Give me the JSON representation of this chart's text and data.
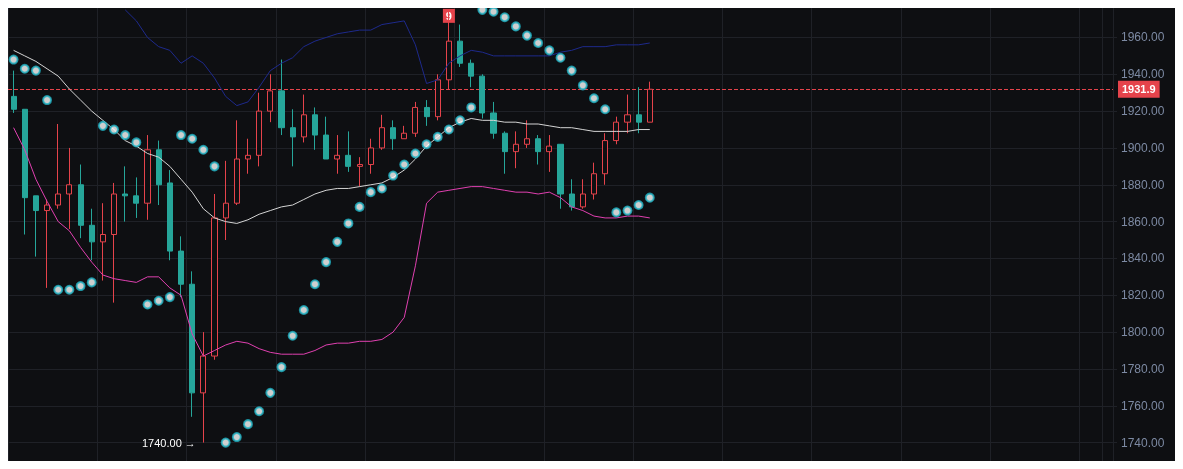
{
  "chart_data": {
    "type": "candlestick",
    "categories": [
      null,
      null,
      null,
      null,
      null,
      null,
      null,
      null,
      null,
      null,
      null,
      null,
      null,
      null,
      null,
      null,
      null,
      null,
      null,
      null,
      null,
      null,
      null,
      null,
      null,
      null,
      null,
      null,
      null,
      null,
      null,
      null,
      null,
      null,
      null,
      null,
      null,
      null,
      null,
      null,
      null,
      null,
      null,
      null,
      null,
      null,
      null,
      null,
      null,
      null,
      null,
      null,
      null,
      null,
      null,
      null,
      null,
      null,
      null,
      null,
      null,
      null,
      null,
      null,
      null,
      null,
      null,
      null,
      null,
      null,
      null,
      null,
      null,
      null,
      null,
      null,
      null,
      null,
      null,
      null,
      null,
      null,
      null,
      null,
      null,
      null,
      null,
      null,
      null,
      null,
      null,
      null,
      null,
      null,
      null,
      null,
      null,
      null,
      null
    ],
    "ohlc": [
      [
        1928,
        1942,
        1919,
        1921
      ],
      [
        1921,
        1921,
        1853,
        1873
      ],
      [
        1874,
        1874,
        1841,
        1866
      ],
      [
        1866,
        1872,
        1824,
        1869
      ],
      [
        1869,
        1913,
        1867,
        1875
      ],
      [
        1875,
        1900,
        1856,
        1880
      ],
      [
        1880,
        1891,
        1851,
        1858
      ],
      [
        1858,
        1867,
        1839,
        1849
      ],
      [
        1849,
        1870,
        1828,
        1853
      ],
      [
        1853,
        1881,
        1816,
        1875
      ],
      [
        1875,
        1890,
        1860,
        1874
      ],
      [
        1874,
        1884,
        1862,
        1870
      ],
      [
        1870,
        1907,
        1861,
        1899
      ],
      [
        1899,
        1904,
        1869,
        1880
      ],
      [
        1881,
        1888,
        1839,
        1844
      ],
      [
        1844,
        1852,
        1819,
        1826
      ],
      [
        1826,
        1833,
        1754,
        1767
      ],
      [
        1767,
        1800,
        1740,
        1787
      ],
      [
        1787,
        1875,
        1785,
        1862
      ],
      [
        1862,
        1893,
        1850,
        1870
      ],
      [
        1870,
        1915,
        1869,
        1894
      ],
      [
        1894,
        1905,
        1886,
        1896
      ],
      [
        1896,
        1930,
        1890,
        1920
      ],
      [
        1920,
        1940,
        1914,
        1931
      ],
      [
        1931,
        1948,
        1907,
        1911
      ],
      [
        1911,
        1921,
        1890,
        1906
      ],
      [
        1906,
        1929,
        1903,
        1918
      ],
      [
        1918,
        1922,
        1899,
        1907
      ],
      [
        1907,
        1917,
        1894,
        1894
      ],
      [
        1894,
        1907,
        1886,
        1896
      ],
      [
        1896,
        1909,
        1887,
        1890
      ],
      [
        1890,
        1895,
        1879,
        1891
      ],
      [
        1891,
        1905,
        1886,
        1900
      ],
      [
        1900,
        1918,
        1899,
        1911
      ],
      [
        1911,
        1915,
        1899,
        1905
      ],
      [
        1905,
        1912,
        1905,
        1908
      ],
      [
        1908,
        1925,
        1906,
        1922
      ],
      [
        1922,
        1926,
        1912,
        1917
      ],
      [
        1917,
        1940,
        1915,
        1937
      ],
      [
        1937,
        1975,
        1932,
        1958
      ],
      [
        1958,
        1967,
        1944,
        1946
      ],
      [
        1946,
        1948,
        1933,
        1939
      ],
      [
        1939,
        1940,
        1916,
        1919
      ],
      [
        1919,
        1925,
        1905,
        1908
      ],
      [
        1908,
        1909,
        1886,
        1898
      ],
      [
        1898,
        1909,
        1889,
        1902
      ],
      [
        1902,
        1915,
        1900,
        1905
      ],
      [
        1905,
        1907,
        1891,
        1898
      ],
      [
        1898,
        1907,
        1887,
        1901
      ],
      [
        1902,
        1902,
        1867,
        1875
      ],
      [
        1875,
        1883,
        1866,
        1868
      ],
      [
        1868,
        1883,
        1867,
        1875
      ],
      [
        1875,
        1892,
        1872,
        1886
      ],
      [
        1886,
        1908,
        1880,
        1904
      ],
      [
        1904,
        1917,
        1902,
        1914
      ],
      [
        1914,
        1929,
        1908,
        1918
      ],
      [
        1918,
        1933,
        1908,
        1914
      ],
      [
        1914,
        1936,
        1914,
        1931.9
      ],
      null,
      null,
      null,
      null,
      null,
      null,
      null,
      null,
      null,
      null,
      null,
      null,
      null,
      null,
      null,
      null,
      null,
      null,
      null,
      null,
      null,
      null,
      null,
      null,
      null,
      null,
      null,
      null,
      null,
      null,
      null,
      null,
      null,
      null,
      null,
      null,
      null,
      null,
      null,
      null,
      null
    ],
    "colors": [
      "#26a69a",
      "#26a69a",
      "#26a69a",
      "#e5434b",
      "#e5434b",
      "#e5434b",
      "#26a69a",
      "#26a69a",
      "#e5434b",
      "#e5434b",
      "#26a69a",
      "#26a69a",
      "#e5434b",
      "#26a69a",
      "#26a69a",
      "#26a69a",
      "#26a69a",
      "#e5434b",
      "#e5434b",
      "#e5434b",
      "#e5434b",
      "#e5434b",
      "#e5434b",
      "#e5434b",
      "#26a69a",
      "#26a69a",
      "#e5434b",
      "#26a69a",
      "#26a69a",
      "#e5434b",
      "#26a69a",
      "#e5434b",
      "#e5434b",
      "#e5434b",
      "#26a69a",
      "#e5434b",
      "#e5434b",
      "#26a69a",
      "#e5434b",
      "#e5434b",
      "#26a69a",
      "#26a69a",
      "#26a69a",
      "#26a69a",
      "#26a69a",
      "#e5434b",
      "#e5434b",
      "#26a69a",
      "#e5434b",
      "#26a69a",
      "#26a69a",
      "#e5434b",
      "#e5434b",
      "#e5434b",
      "#e5434b",
      "#e5434b",
      "#26a69a",
      "#e5434b",
      null,
      null,
      null,
      null,
      null,
      null,
      null,
      null,
      null,
      null,
      null,
      null,
      null,
      null,
      null,
      null,
      null,
      null,
      null,
      null,
      null,
      null,
      null,
      null,
      null,
      null,
      null,
      null,
      null,
      null,
      null,
      null,
      null,
      null,
      null,
      null,
      null,
      null,
      null,
      null,
      null
    ],
    "series": [
      {
        "type": "line",
        "color": "#1e2a8c",
        "values": [
          null,
          null,
          null,
          null,
          null,
          null,
          null,
          null,
          null,
          null,
          1975,
          1969,
          1960,
          1955,
          1953,
          1946,
          1950,
          1946,
          1938,
          1928,
          1923,
          1925,
          1933,
          1942,
          1946,
          1949,
          1955,
          1958,
          1960,
          1962,
          1963,
          1964,
          1964,
          1967,
          1968,
          1969,
          1956,
          1935,
          1937,
          1946,
          1950,
          1953,
          1952,
          1950,
          1950,
          1950,
          1950,
          1950,
          1950,
          1952,
          1953,
          1955,
          1955,
          1955,
          1956,
          1956,
          1956,
          1957,
          null,
          null,
          null,
          null,
          null,
          null,
          null,
          null,
          null,
          null,
          null,
          null,
          null,
          null,
          null,
          null,
          null,
          null,
          null,
          null,
          null,
          null,
          null,
          null,
          null,
          null,
          null,
          null,
          null,
          null,
          null,
          null,
          null,
          null,
          null,
          null,
          null,
          null,
          null,
          null,
          null
        ]
      },
      {
        "type": "line",
        "color": "#d4d4d4",
        "values": [
          1953,
          1950,
          1947,
          1943,
          1939,
          1932,
          1926,
          1920,
          1915,
          1910,
          1904,
          1901,
          1897,
          1895,
          1890,
          1883,
          1876,
          1867,
          1862,
          1860,
          1859,
          1861,
          1864,
          1866,
          1868,
          1869,
          1872,
          1875,
          1877,
          1878,
          1878,
          1879,
          1880,
          1881,
          1884,
          1888,
          1894,
          1901,
          1906,
          1911,
          1914,
          1916,
          1915,
          1915,
          1914,
          1914,
          1913,
          1913,
          1912,
          1911,
          1911,
          1910,
          1909,
          1909,
          1909,
          1909,
          1910,
          1910,
          null,
          null,
          null,
          null,
          null,
          null,
          null,
          null,
          null,
          null,
          null,
          null,
          null,
          null,
          null,
          null,
          null,
          null,
          null,
          null,
          null,
          null,
          null,
          null,
          null,
          null,
          null,
          null,
          null,
          null,
          null,
          null,
          null,
          null,
          null,
          null,
          null,
          null,
          null,
          null,
          null
        ]
      },
      {
        "type": "line",
        "color": "#e040b0",
        "values": [
          1911,
          1899,
          1883,
          1871,
          1860,
          1855,
          1846,
          1838,
          1831,
          1829,
          1828,
          1827,
          1830,
          1830,
          1824,
          1820,
          1799,
          1787,
          1790,
          1793,
          1795,
          1794,
          1791,
          1789,
          1788,
          1788,
          1788,
          1790,
          1793,
          1794,
          1794,
          1795,
          1795,
          1796,
          1800,
          1808,
          1836,
          1870,
          1876,
          1877,
          1878,
          1879,
          1879,
          1878,
          1877,
          1876,
          1876,
          1875,
          1876,
          1873,
          1868,
          1866,
          1863,
          1862,
          1862,
          1863,
          1863,
          1862,
          null,
          null,
          null,
          null,
          null,
          null,
          null,
          null,
          null,
          null,
          null,
          null,
          null,
          null,
          null,
          null,
          null,
          null,
          null,
          null,
          null,
          null,
          null,
          null,
          null,
          null,
          null,
          null,
          null,
          null,
          null,
          null,
          null,
          null,
          null,
          null,
          null,
          null,
          null,
          null,
          null
        ]
      },
      {
        "type": "scatter",
        "color": "#1fb3c4",
        "marker": "circle",
        "values": [
          1948,
          1943,
          1942,
          1926,
          1823,
          1823,
          1825,
          1827,
          1912,
          1910,
          1907,
          1903,
          1815,
          1817,
          1819,
          1907,
          1905,
          1899,
          1890,
          1740,
          1743,
          1750,
          1757,
          1767,
          1781,
          1798,
          1812,
          1826,
          1838,
          1849,
          1859,
          1868,
          1876,
          1878,
          1885,
          1891,
          1897,
          1902,
          1906,
          1910,
          1915,
          1922,
          1975,
          1974,
          1971,
          1966,
          1961,
          1957,
          1953,
          1949,
          1942,
          1934,
          1927,
          1921,
          1865,
          1866,
          1869,
          1873,
          null,
          null,
          null,
          null,
          null,
          null,
          null,
          null,
          null,
          null,
          null,
          null,
          null,
          null,
          null,
          null,
          null,
          null,
          null,
          null,
          null,
          null,
          null,
          null,
          null,
          null,
          null,
          null,
          null,
          null,
          null,
          null,
          null,
          null,
          null,
          null,
          null,
          null,
          null,
          null,
          null
        ]
      }
    ],
    "ylim": [
      1730,
      1976
    ],
    "yticks": [
      {
        "value": 1740,
        "label": "1740.00"
      },
      {
        "value": 1760,
        "label": "1760.00"
      },
      {
        "value": 1780,
        "label": "1780.00"
      },
      {
        "value": 1800,
        "label": "1800.00"
      },
      {
        "value": 1820,
        "label": "1820.00"
      },
      {
        "value": 1840,
        "label": "1840.00"
      },
      {
        "value": 1860,
        "label": "1860.00"
      },
      {
        "value": 1880,
        "label": "1880.00"
      },
      {
        "value": 1900,
        "label": "1900.00"
      },
      {
        "value": 1920,
        "label": "1920.00"
      },
      {
        "value": 1940,
        "label": "1940.00"
      },
      {
        "value": 1960,
        "label": "1960.00"
      }
    ],
    "ref_lines": [
      {
        "axis": "y",
        "value": 1931.9,
        "label": "1931.9",
        "color": "#e5434b",
        "line_style": "dashed"
      }
    ],
    "annotations": [
      "1740.00 →",
      "9"
    ],
    "grid": true,
    "tick_labels": "y"
  }
}
